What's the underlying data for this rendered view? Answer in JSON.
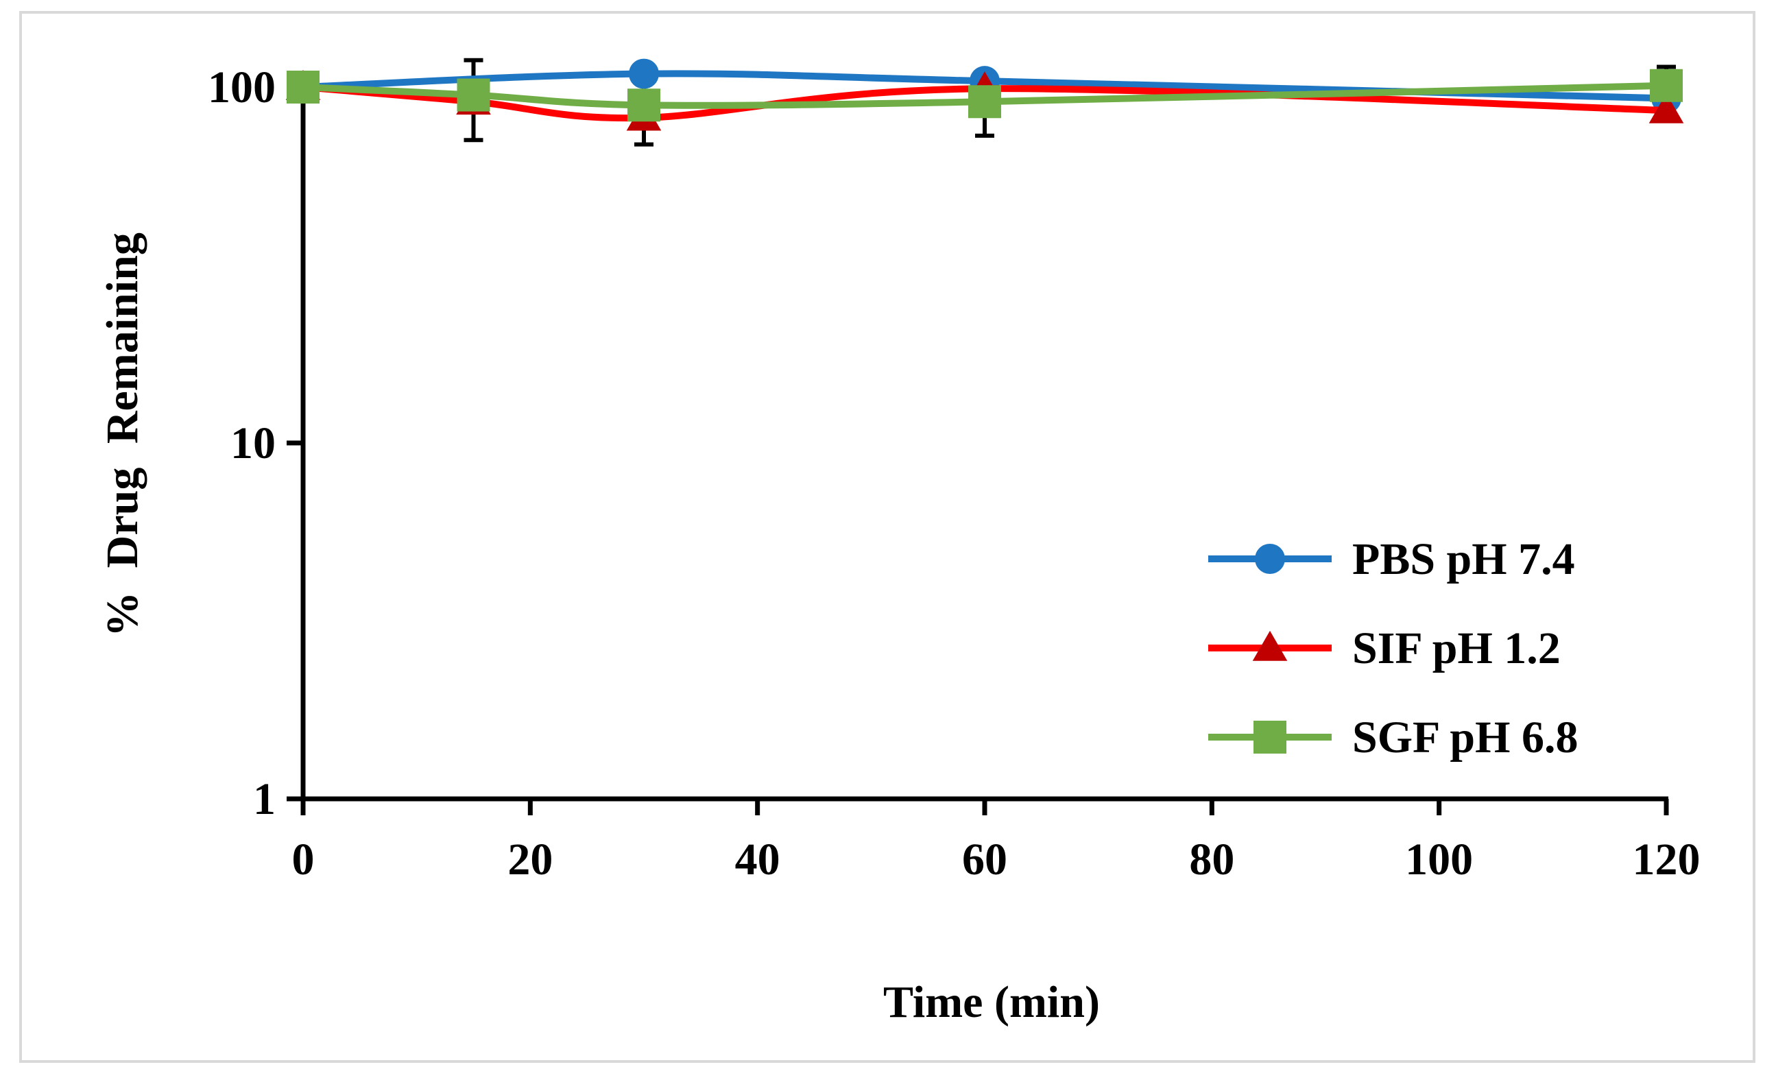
{
  "chart_data": {
    "type": "line",
    "title": "",
    "xlabel": "Time (min)",
    "ylabel": "% Drug Remaining",
    "xlim": [
      0,
      120
    ],
    "ylim": [
      1,
      100
    ],
    "yscale": "log",
    "x_ticks": [
      0,
      20,
      40,
      60,
      80,
      100,
      120
    ],
    "y_ticks": [
      1,
      10,
      100
    ],
    "grid": false,
    "legend_position": "right",
    "series": [
      {
        "name": "PBS pH 7.4",
        "color": "#1f77c4",
        "marker": "circle",
        "x": [
          0,
          30,
          60,
          120
        ],
        "y": [
          100,
          109,
          104,
          93
        ],
        "error": [
          0,
          0,
          0,
          0
        ]
      },
      {
        "name": "SIF pH 1.2",
        "color": "#ff0000",
        "marker": "triangle",
        "x": [
          0,
          15,
          30,
          60,
          120
        ],
        "y": [
          100,
          91,
          82,
          99,
          86
        ],
        "error": [
          0,
          0,
          0,
          0,
          0
        ]
      },
      {
        "name": "SGF pH 6.8",
        "color": "#70ad47",
        "marker": "square",
        "x": [
          0,
          15,
          30,
          60,
          120
        ],
        "y": [
          100,
          95,
          89,
          91,
          101
        ],
        "error": [
          0,
          24,
          20,
          18,
          13
        ]
      }
    ]
  }
}
